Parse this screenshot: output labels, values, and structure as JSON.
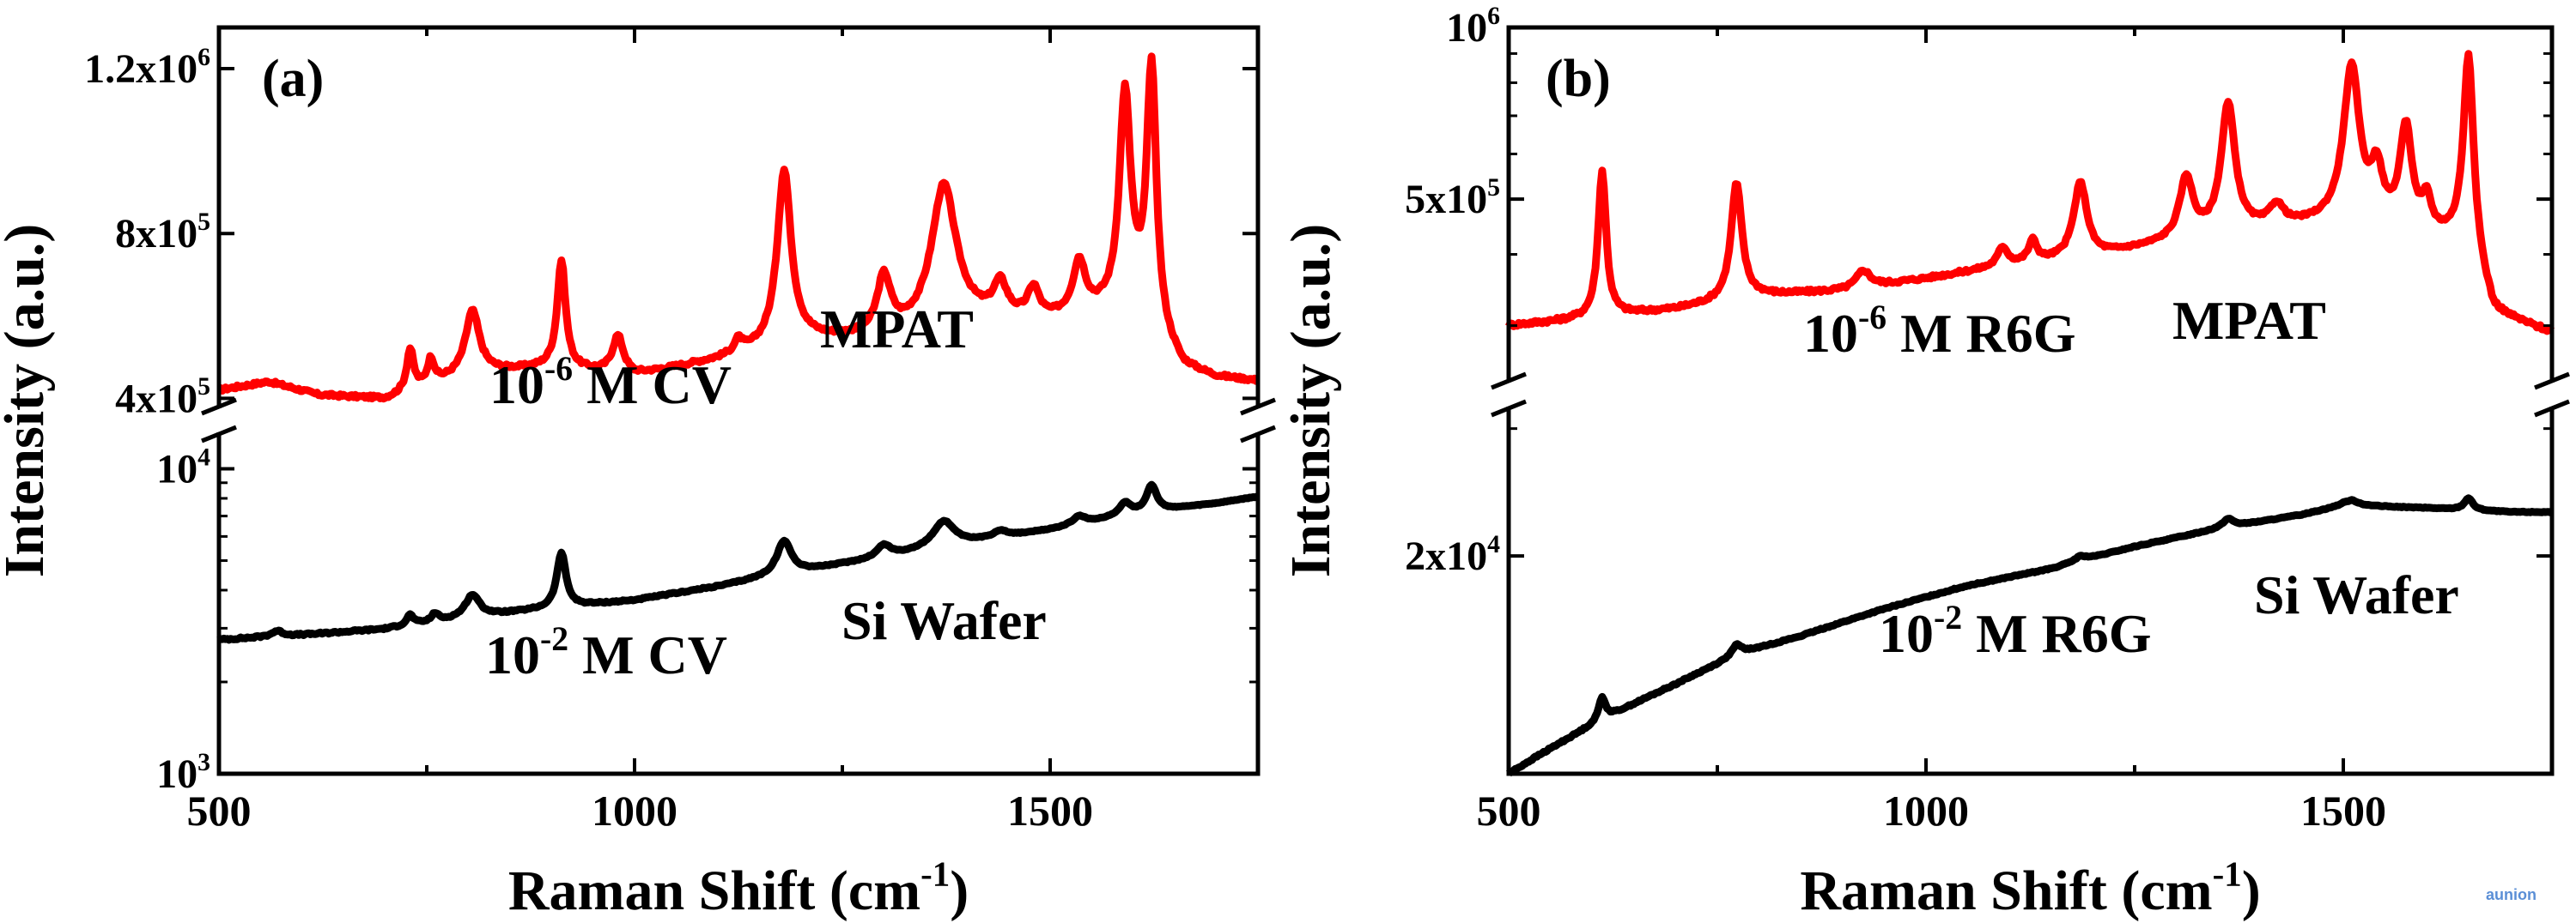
{
  "watermark": "aunion",
  "chart_data": [
    {
      "type": "line",
      "panel_label": "(a)",
      "xlabel": "Raman Shift (cm",
      "xlabel_sup": "-1",
      "xlabel_tail": ")",
      "ylabel": "Intensity (a.u.)",
      "xlim": [
        500,
        1750
      ],
      "x_ticks": [
        500,
        1000,
        1500
      ],
      "upper_axis": {
        "scale": "linear",
        "ylim": [
          380000,
          1300000
        ],
        "ticks": [
          {
            "v": 400000,
            "m": "4x10",
            "e": "5"
          },
          {
            "v": 800000,
            "m": "8x10",
            "e": "5"
          },
          {
            "v": 1200000,
            "m": "1.2x10",
            "e": "6"
          }
        ]
      },
      "lower_axis": {
        "scale": "log",
        "ylim": [
          1000,
          13000
        ],
        "ticks": [
          {
            "v": 1000,
            "m": "10",
            "e": "3"
          },
          {
            "v": 10000,
            "m": "10",
            "e": "4"
          }
        ]
      },
      "series": [
        {
          "name": "10-6 M CV",
          "color": "#ff0000",
          "axis": "upper",
          "baseline": [
            [
              500,
              420000
            ],
            [
              560,
              440000
            ],
            [
              620,
              408000
            ],
            [
              700,
              398000
            ],
            [
              800,
              460000
            ],
            [
              900,
              475000
            ],
            [
              1000,
              455000
            ],
            [
              1100,
              492000
            ],
            [
              1200,
              540000
            ],
            [
              1300,
              545000
            ],
            [
              1400,
              585000
            ],
            [
              1500,
              588000
            ],
            [
              1600,
              620000
            ],
            [
              1660,
              470000
            ],
            [
              1700,
              448000
            ],
            [
              1750,
              440000
            ]
          ],
          "peaks": [
            [
              730,
              100000,
              5
            ],
            [
              755,
              60000,
              5
            ],
            [
              805,
              150000,
              10
            ],
            [
              912,
              260000,
              6
            ],
            [
              980,
              90000,
              8
            ],
            [
              1125,
              30000,
              6
            ],
            [
              1180,
              420000,
              10
            ],
            [
              1300,
              140000,
              10
            ],
            [
              1372,
              340000,
              18
            ],
            [
              1440,
              80000,
              10
            ],
            [
              1480,
              70000,
              8
            ],
            [
              1535,
              125000,
              9
            ],
            [
              1590,
              510000,
              8
            ],
            [
              1622,
              630000,
              7
            ]
          ],
          "noise": 8000
        },
        {
          "name": "10-2 M CV",
          "color": "#000000",
          "axis": "lower",
          "baseline": [
            [
              500,
              2750
            ],
            [
              600,
              2850
            ],
            [
              700,
              2980
            ],
            [
              800,
              3250
            ],
            [
              900,
              3480
            ],
            [
              1000,
              3700
            ],
            [
              1100,
              4100
            ],
            [
              1200,
              4600
            ],
            [
              1300,
              5100
            ],
            [
              1400,
              5700
            ],
            [
              1500,
              6300
            ],
            [
              1600,
              7100
            ],
            [
              1700,
              7700
            ],
            [
              1750,
              8100
            ]
          ],
          "peaks": [
            [
              570,
              120,
              8
            ],
            [
              730,
              250,
              5
            ],
            [
              760,
              200,
              5
            ],
            [
              805,
              600,
              10
            ],
            [
              912,
              1800,
              6
            ],
            [
              1180,
              1300,
              10
            ],
            [
              1300,
              500,
              10
            ],
            [
              1372,
              1200,
              15
            ],
            [
              1440,
              300,
              10
            ],
            [
              1535,
              400,
              9
            ],
            [
              1590,
              700,
              8
            ],
            [
              1622,
              1600,
              7
            ]
          ],
          "noise": 40
        }
      ],
      "annotations": [
        {
          "m": "10",
          "e": "-6",
          "t": " M CV"
        },
        {
          "t": "MPAT"
        },
        {
          "m": "10",
          "e": "-2",
          "t": " M CV"
        },
        {
          "t": "Si Wafer"
        }
      ]
    },
    {
      "type": "line",
      "panel_label": "(b)",
      "xlabel": "Raman Shift (cm",
      "xlabel_sup": "-1",
      "xlabel_tail": ")",
      "ylabel": "Intensity (a.u.)",
      "xlim": [
        500,
        1750
      ],
      "x_ticks": [
        500,
        1000,
        1500
      ],
      "upper_axis": {
        "scale": "log",
        "ylim": [
          240000,
          1000000
        ],
        "ticks": [
          {
            "v": 500000,
            "m": "5x10",
            "e": "5"
          },
          {
            "v": 1000000,
            "m": "10",
            "e": "6"
          }
        ]
      },
      "lower_axis": {
        "scale": "log",
        "ylim": [
          10000,
          32000
        ],
        "ticks": [
          {
            "v": 20000,
            "m": "2x10",
            "e": "4"
          }
        ]
      },
      "series": [
        {
          "name": "10-6 M R6G",
          "color": "#ff0000",
          "axis": "upper",
          "baseline": [
            [
              500,
              300000
            ],
            [
              560,
              305000
            ],
            [
              700,
              320000
            ],
            [
              800,
              338000
            ],
            [
              900,
              345000
            ],
            [
              1000,
              362000
            ],
            [
              1100,
              382000
            ],
            [
              1200,
              395000
            ],
            [
              1300,
              420000
            ],
            [
              1400,
              440000
            ],
            [
              1500,
              455000
            ],
            [
              1600,
              430000
            ],
            [
              1640,
              420000
            ],
            [
              1680,
              310000
            ],
            [
              1750,
              290000
            ]
          ],
          "peaks": [
            [
              612,
              250000,
              5
            ],
            [
              773,
              200000,
              7
            ],
            [
              925,
              25000,
              10
            ],
            [
              1092,
              30000,
              7
            ],
            [
              1128,
              35000,
              6
            ],
            [
              1185,
              140000,
              9
            ],
            [
              1312,
              120000,
              9
            ],
            [
              1362,
              300000,
              9
            ],
            [
              1420,
              40000,
              10
            ],
            [
              1510,
              400000,
              10
            ],
            [
              1540,
              110000,
              8
            ],
            [
              1575,
              230000,
              8
            ],
            [
              1600,
              60000,
              6
            ],
            [
              1650,
              500000,
              6
            ]
          ],
          "noise": 5000
        },
        {
          "name": "10-2 M R6G",
          "color": "#000000",
          "axis": "lower",
          "baseline": [
            [
              500,
              10000
            ],
            [
              560,
              11000
            ],
            [
              620,
              12000
            ],
            [
              700,
              13300
            ],
            [
              780,
              14700
            ],
            [
              850,
              15500
            ],
            [
              950,
              16900
            ],
            [
              1050,
              18200
            ],
            [
              1150,
              19200
            ],
            [
              1250,
              20600
            ],
            [
              1350,
              21800
            ],
            [
              1450,
              22800
            ],
            [
              1500,
              23500
            ],
            [
              1600,
              23300
            ],
            [
              1700,
              23000
            ],
            [
              1750,
              23000
            ]
          ],
          "peaks": [
            [
              612,
              900,
              5
            ],
            [
              773,
              500,
              7
            ],
            [
              1185,
              300,
              9
            ],
            [
              1362,
              600,
              8
            ],
            [
              1510,
              400,
              10
            ],
            [
              1650,
              900,
              6
            ]
          ],
          "noise": 60
        }
      ],
      "annotations": [
        {
          "m": "10",
          "e": "-6",
          "t": " M R6G"
        },
        {
          "t": "MPAT"
        },
        {
          "m": "10",
          "e": "-2",
          "t": " M R6G"
        },
        {
          "t": "Si Wafer"
        }
      ]
    }
  ]
}
